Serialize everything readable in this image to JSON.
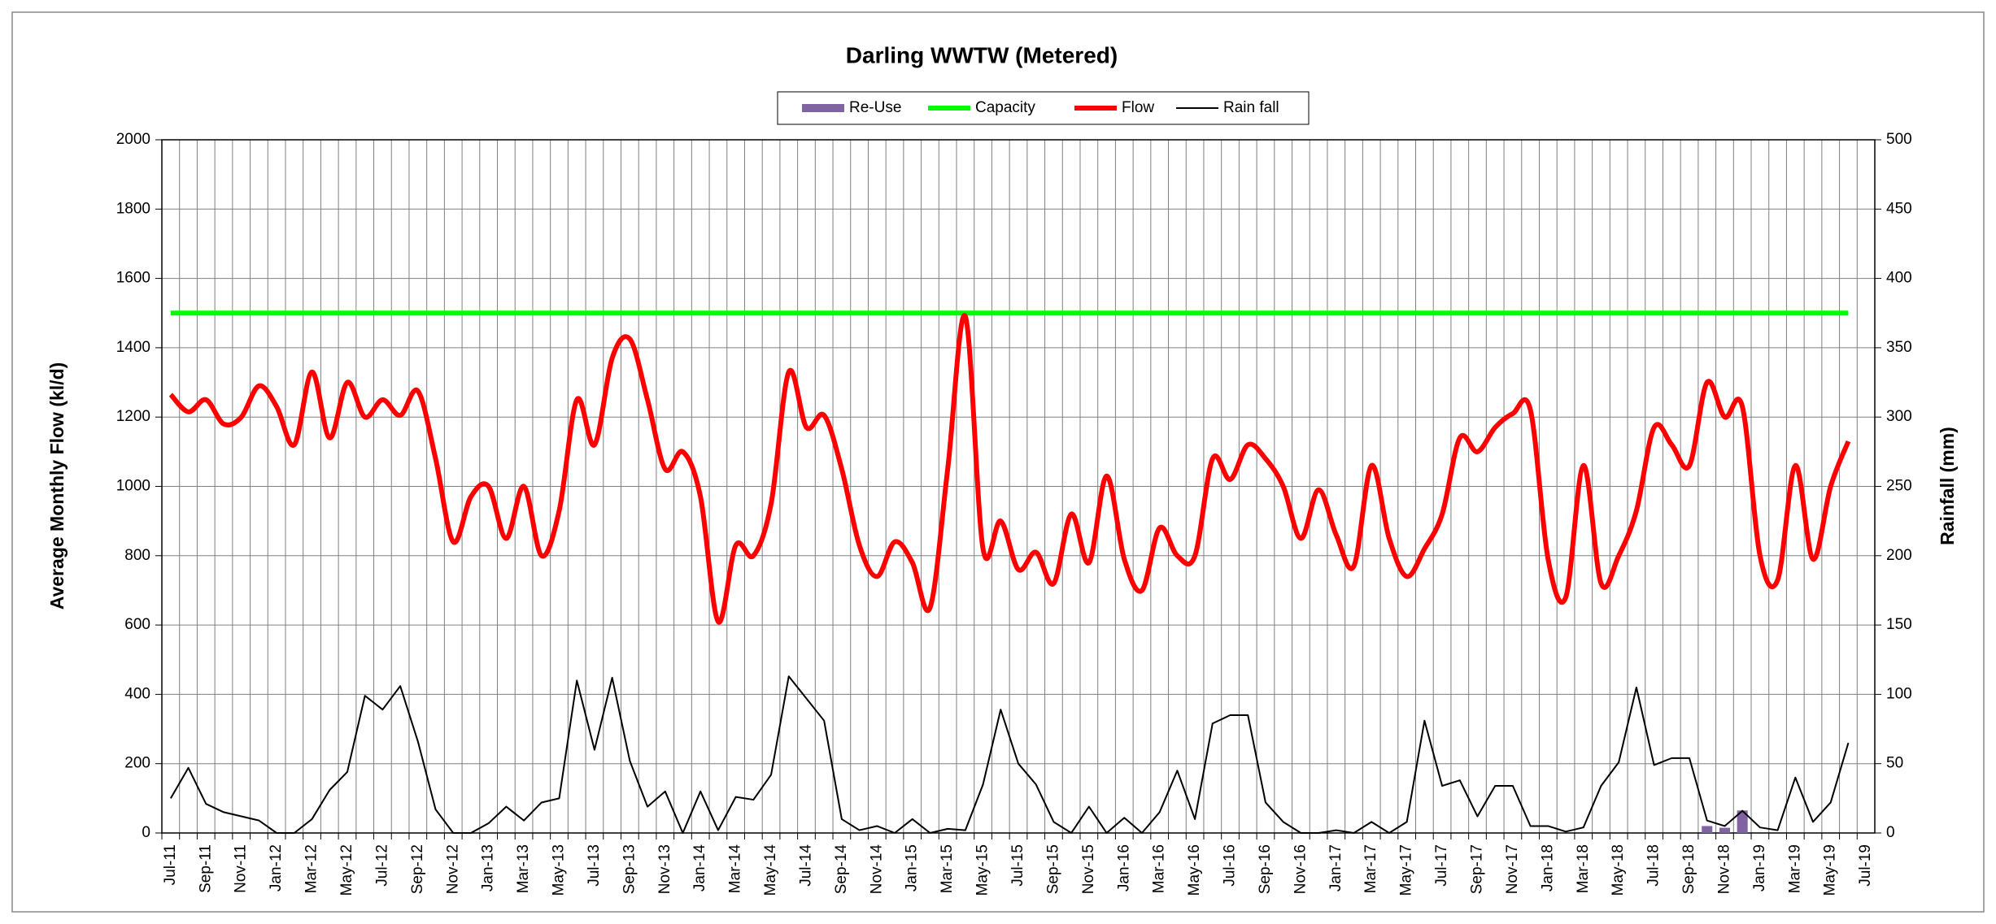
{
  "chart_data": {
    "type": "combo",
    "title": "Darling WWTW (Metered)",
    "y_label": "Average Monthly Flow (kl/d)",
    "y2_label": "Rainfall (mm)",
    "categories": [
      "Jul-11",
      null,
      "Sep-11",
      null,
      "Nov-11",
      null,
      "Jan-12",
      null,
      "Mar-12",
      null,
      "May-12",
      null,
      "Jul-12",
      null,
      "Sep-12",
      null,
      "Nov-12",
      null,
      "Jan-13",
      null,
      "Mar-13",
      null,
      "May-13",
      null,
      "Jul-13",
      null,
      "Sep-13",
      null,
      "Nov-13",
      null,
      "Jan-14",
      null,
      "Mar-14",
      null,
      "May-14",
      null,
      "Jul-14",
      null,
      "Sep-14",
      null,
      "Nov-14",
      null,
      "Jan-15",
      null,
      "Mar-15",
      null,
      "May-15",
      null,
      "Jul-15",
      null,
      "Sep-15",
      null,
      "Nov-15",
      null,
      "Jan-16",
      null,
      "Mar-16",
      null,
      "May-16",
      null,
      "Jul-16",
      null,
      "Sep-16",
      null,
      "Nov-16",
      null,
      "Jan-17",
      null,
      "Mar-17",
      null,
      "May-17",
      null,
      "Jul-17",
      null,
      "Sep-17",
      null,
      "Nov-17",
      null,
      "Jan-18",
      null,
      "Mar-18",
      null,
      "May-18",
      null,
      "Jul-18",
      null,
      "Sep-18",
      null,
      "Nov-18",
      null,
      "Jan-19",
      null,
      "Mar-19",
      null,
      "May-19",
      null,
      "Jul-19"
    ],
    "series": [
      {
        "name": "Re-Use",
        "type": "bar",
        "color": "#8064a2",
        "values": [
          null,
          null,
          null,
          null,
          null,
          null,
          null,
          null,
          null,
          null,
          null,
          null,
          null,
          null,
          null,
          null,
          null,
          null,
          null,
          null,
          null,
          null,
          null,
          null,
          null,
          null,
          null,
          null,
          null,
          null,
          null,
          null,
          null,
          null,
          null,
          null,
          null,
          null,
          null,
          null,
          null,
          null,
          null,
          null,
          null,
          null,
          null,
          null,
          null,
          null,
          null,
          null,
          null,
          null,
          null,
          null,
          null,
          null,
          null,
          null,
          null,
          null,
          null,
          null,
          null,
          null,
          null,
          null,
          null,
          null,
          null,
          null,
          null,
          null,
          null,
          null,
          null,
          null,
          null,
          null,
          null,
          null,
          null,
          null,
          null,
          null,
          null,
          20,
          15,
          65,
          null,
          null,
          null,
          null,
          null,
          null,
          null
        ]
      },
      {
        "name": "Capacity",
        "type": "line",
        "color": "#00ff00",
        "values": [
          1500,
          1500,
          1500,
          1500,
          1500,
          1500,
          1500,
          1500,
          1500,
          1500,
          1500,
          1500,
          1500,
          1500,
          1500,
          1500,
          1500,
          1500,
          1500,
          1500,
          1500,
          1500,
          1500,
          1500,
          1500,
          1500,
          1500,
          1500,
          1500,
          1500,
          1500,
          1500,
          1500,
          1500,
          1500,
          1500,
          1500,
          1500,
          1500,
          1500,
          1500,
          1500,
          1500,
          1500,
          1500,
          1500,
          1500,
          1500,
          1500,
          1500,
          1500,
          1500,
          1500,
          1500,
          1500,
          1500,
          1500,
          1500,
          1500,
          1500,
          1500,
          1500,
          1500,
          1500,
          1500,
          1500,
          1500,
          1500,
          1500,
          1500,
          1500,
          1500,
          1500,
          1500,
          1500,
          1500,
          1500,
          1500,
          1500,
          1500,
          1500,
          1500,
          1500,
          1500,
          1500,
          1500,
          1500,
          1500,
          1500,
          1500,
          1500,
          1500,
          1500,
          1500,
          1500,
          1500,
          null
        ]
      },
      {
        "name": "Flow",
        "type": "line",
        "smooth": true,
        "color": "#ff0000",
        "values": [
          1265,
          1215,
          1250,
          1180,
          1200,
          1290,
          1230,
          1120,
          1330,
          1140,
          1300,
          1200,
          1250,
          1205,
          1275,
          1080,
          840,
          970,
          1000,
          850,
          1000,
          800,
          930,
          1250,
          1120,
          1370,
          1425,
          1250,
          1050,
          1100,
          970,
          610,
          830,
          800,
          950,
          1330,
          1170,
          1205,
          1050,
          830,
          740,
          840,
          780,
          650,
          1050,
          1490,
          820,
          900,
          760,
          810,
          720,
          920,
          780,
          1030,
          790,
          700,
          880,
          800,
          800,
          1080,
          1020,
          1120,
          1080,
          1000,
          850,
          990,
          860,
          770,
          1060,
          850,
          740,
          820,
          920,
          1140,
          1100,
          1170,
          1210,
          1220,
          790,
          680,
          1060,
          720,
          800,
          930,
          1170,
          1120,
          1060,
          1300,
          1200,
          1230,
          800,
          730,
          1060,
          790,
          1000,
          1130,
          null
        ]
      },
      {
        "name": "Rain fall",
        "type": "line",
        "axis": "y2",
        "color": "#000000",
        "values": [
          25,
          47,
          21,
          15,
          12,
          9,
          0,
          0,
          10,
          31,
          44,
          99,
          89,
          106,
          66,
          17,
          0,
          0,
          7,
          19,
          9,
          22,
          25,
          110,
          60,
          112,
          52,
          19,
          30,
          0,
          30,
          2,
          26,
          24,
          42,
          113,
          97,
          81,
          10,
          2,
          5,
          0,
          10,
          0,
          3,
          2,
          35,
          89,
          50,
          35,
          8,
          0,
          19,
          0,
          11,
          0,
          15,
          45,
          10,
          79,
          85,
          85,
          22,
          8,
          0,
          0,
          2,
          0,
          8,
          0,
          8,
          81,
          34,
          38,
          12,
          34,
          34,
          5,
          5,
          1,
          4,
          34,
          51,
          105,
          49,
          54,
          54,
          9,
          5,
          16,
          4,
          2,
          40,
          8,
          22,
          65,
          null
        ]
      }
    ],
    "ylim": [
      0,
      2000
    ],
    "yticks": [
      0,
      200,
      400,
      600,
      800,
      1000,
      1200,
      1400,
      1600,
      1800,
      2000
    ],
    "y2lim": [
      0,
      500
    ],
    "y2ticks": [
      0,
      50,
      100,
      150,
      200,
      250,
      300,
      350,
      400,
      450,
      500
    ],
    "grid": true,
    "legend": "top"
  }
}
